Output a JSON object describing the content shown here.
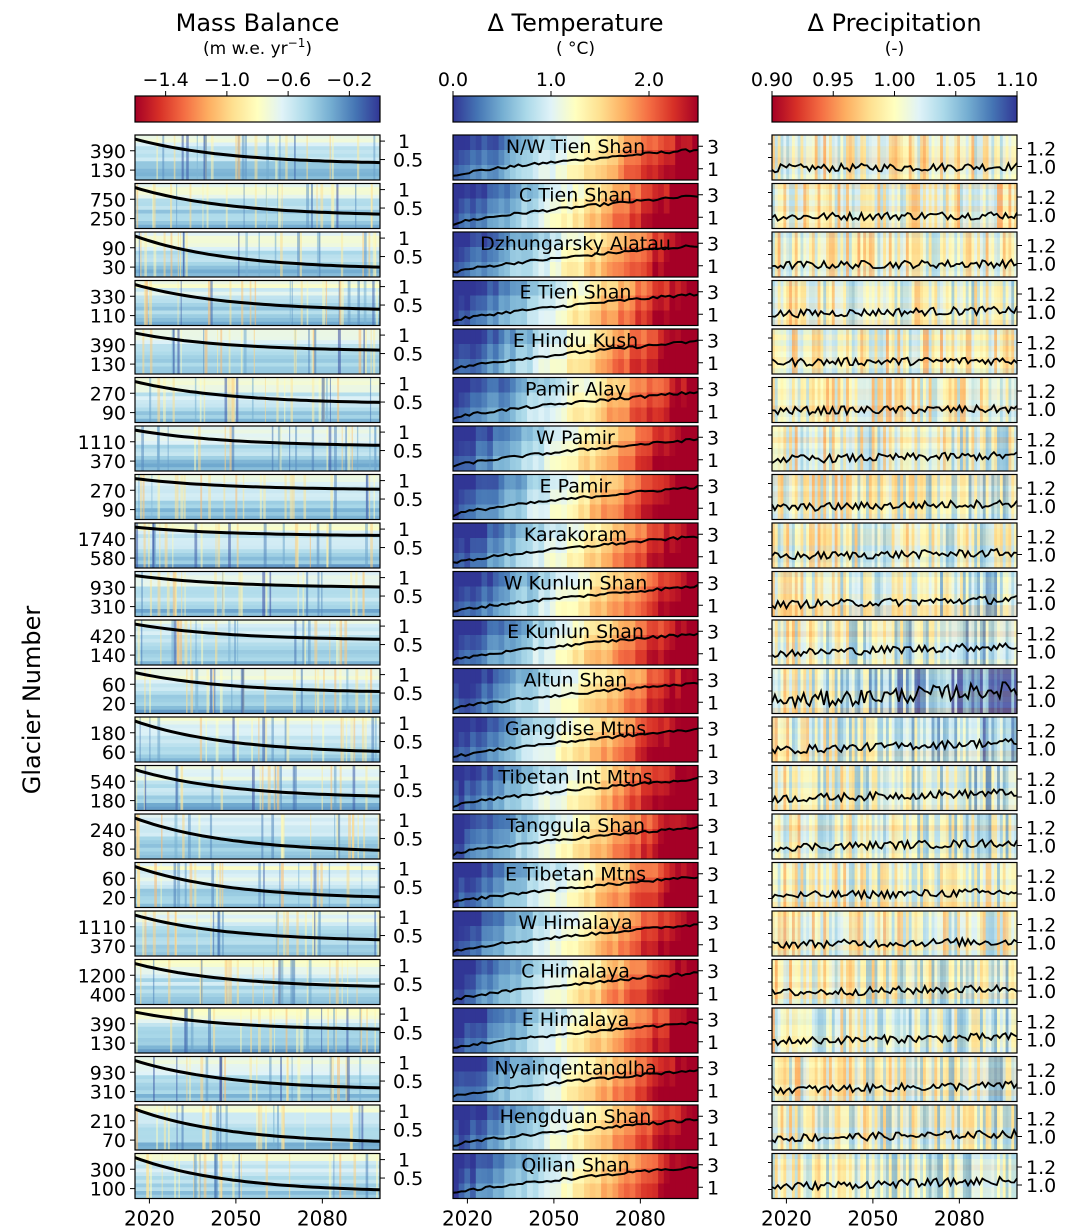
{
  "y_axis_label": "Glacier Number",
  "x_ticks": [
    "2020",
    "2050",
    "2080"
  ],
  "panels": [
    {
      "title": "Mass Balance",
      "units_prefix": "(m w.e. yr",
      "units_sup": "−1",
      "units_suffix": ")",
      "colorbar_ticks": [
        "−1.4",
        "−1.0",
        "−0.6",
        "−0.2"
      ],
      "colormap": "RdYlBu",
      "right_ticks": [
        "1",
        "0.5"
      ]
    },
    {
      "title": "Δ Temperature",
      "units": "( °C)",
      "colorbar_ticks": [
        "0.0",
        "1.0",
        "2.0"
      ],
      "colormap": "RdYlBu_r",
      "right_ticks": [
        "3",
        "1"
      ]
    },
    {
      "title": "Δ Precipitation",
      "units": "(-)",
      "colorbar_ticks": [
        "0.90",
        "0.95",
        "1.00",
        "1.05",
        "1.10"
      ],
      "colormap": "RdYlBu",
      "right_ticks": [
        "1.2",
        "1.0"
      ]
    }
  ],
  "regions": [
    {
      "name": "N/W Tien Shan",
      "glacier_ticks": [
        "390",
        "130"
      ]
    },
    {
      "name": "C Tien Shan",
      "glacier_ticks": [
        "750",
        "250"
      ]
    },
    {
      "name": "Dzhungarsky Alatau",
      "glacier_ticks": [
        "90",
        "30"
      ]
    },
    {
      "name": "E Tien Shan",
      "glacier_ticks": [
        "330",
        "110"
      ]
    },
    {
      "name": "E Hindu Kush",
      "glacier_ticks": [
        "390",
        "130"
      ]
    },
    {
      "name": "Pamir Alay",
      "glacier_ticks": [
        "270",
        "90"
      ]
    },
    {
      "name": "W Pamir",
      "glacier_ticks": [
        "1110",
        "370"
      ]
    },
    {
      "name": "E Pamir",
      "glacier_ticks": [
        "270",
        "90"
      ]
    },
    {
      "name": "Karakoram",
      "glacier_ticks": [
        "1740",
        "580"
      ]
    },
    {
      "name": "W Kunlun Shan",
      "glacier_ticks": [
        "930",
        "310"
      ]
    },
    {
      "name": "E Kunlun Shan",
      "glacier_ticks": [
        "420",
        "140"
      ]
    },
    {
      "name": "Altun Shan",
      "glacier_ticks": [
        "60",
        "20"
      ]
    },
    {
      "name": "Gangdise Mtns",
      "glacier_ticks": [
        "180",
        "60"
      ]
    },
    {
      "name": "Tibetan Int Mtns",
      "glacier_ticks": [
        "540",
        "180"
      ]
    },
    {
      "name": "Tanggula Shan",
      "glacier_ticks": [
        "240",
        "80"
      ]
    },
    {
      "name": "E Tibetan Mtns",
      "glacier_ticks": [
        "60",
        "20"
      ]
    },
    {
      "name": "W Himalaya",
      "glacier_ticks": [
        "1110",
        "370"
      ]
    },
    {
      "name": "C Himalaya",
      "glacier_ticks": [
        "1200",
        "400"
      ]
    },
    {
      "name": "E Himalaya",
      "glacier_ticks": [
        "390",
        "130"
      ]
    },
    {
      "name": "Nyainqentanglha",
      "glacier_ticks": [
        "930",
        "310"
      ]
    },
    {
      "name": "Hengduan Shan",
      "glacier_ticks": [
        "210",
        "70"
      ]
    },
    {
      "name": "Qilian Shan",
      "glacier_ticks": [
        "300",
        "100"
      ]
    }
  ],
  "chart_data": {
    "type": "heatmap",
    "x_range": [
      2015,
      2100
    ],
    "x_ticks": [
      2020,
      2050,
      2080
    ],
    "colorbars": {
      "mass_balance": {
        "range": [
          -1.6,
          0.0
        ],
        "ticks": [
          -1.4,
          -1.0,
          -0.6,
          -0.2
        ]
      },
      "temperature": {
        "range": [
          0.0,
          2.5
        ],
        "ticks": [
          0.0,
          1.0,
          2.0
        ]
      },
      "precipitation": {
        "range": [
          0.9,
          1.1
        ],
        "ticks": [
          0.9,
          0.95,
          1.0,
          1.05,
          1.1
        ]
      }
    },
    "right_axis_ranges": {
      "mass_balance_remaining_fraction": [
        0,
        1.1
      ],
      "temperature_line": [
        0,
        4
      ],
      "precipitation_line": [
        0.85,
        1.35
      ]
    },
    "series": [
      {
        "region": "N/W Tien Shan",
        "remaining_fraction": [
          1.0,
          0.38
        ],
        "temp_end": 2.7,
        "precip_mean": 1.0
      },
      {
        "region": "C Tien Shan",
        "remaining_fraction": [
          1.0,
          0.3
        ],
        "temp_end": 2.9,
        "precip_mean": 1.0
      },
      {
        "region": "Dzhungarsky Alatau",
        "remaining_fraction": [
          1.0,
          0.18
        ],
        "temp_end": 2.8,
        "precip_mean": 1.0
      },
      {
        "region": "E Tien Shan",
        "remaining_fraction": [
          1.0,
          0.35
        ],
        "temp_end": 2.8,
        "precip_mean": 1.02
      },
      {
        "region": "E Hindu Kush",
        "remaining_fraction": [
          1.0,
          0.55
        ],
        "temp_end": 2.9,
        "precip_mean": 1.0
      },
      {
        "region": "Pamir Alay",
        "remaining_fraction": [
          1.0,
          0.45
        ],
        "temp_end": 2.7,
        "precip_mean": 1.0
      },
      {
        "region": "W Pamir",
        "remaining_fraction": [
          1.0,
          0.6
        ],
        "temp_end": 2.8,
        "precip_mean": 1.02
      },
      {
        "region": "E Pamir",
        "remaining_fraction": [
          1.0,
          0.72
        ],
        "temp_end": 2.9,
        "precip_mean": 1.03
      },
      {
        "region": "Karakoram",
        "remaining_fraction": [
          1.0,
          0.78
        ],
        "temp_end": 2.8,
        "precip_mean": 1.02
      },
      {
        "region": "W Kunlun Shan",
        "remaining_fraction": [
          1.0,
          0.7
        ],
        "temp_end": 2.7,
        "precip_mean": 1.04
      },
      {
        "region": "E Kunlun Shan",
        "remaining_fraction": [
          1.0,
          0.6
        ],
        "temp_end": 2.8,
        "precip_mean": 1.06
      },
      {
        "region": "Altun Shan",
        "remaining_fraction": [
          1.0,
          0.5
        ],
        "temp_end": 2.7,
        "precip_mean": 1.12
      },
      {
        "region": "Gangdise Mtns",
        "remaining_fraction": [
          1.0,
          0.2
        ],
        "temp_end": 2.9,
        "precip_mean": 1.07
      },
      {
        "region": "Tibetan Int Mtns",
        "remaining_fraction": [
          1.0,
          0.3
        ],
        "temp_end": 2.8,
        "precip_mean": 1.05
      },
      {
        "region": "Tanggula Shan",
        "remaining_fraction": [
          1.0,
          0.15
        ],
        "temp_end": 2.8,
        "precip_mean": 1.03
      },
      {
        "region": "E Tibetan Mtns",
        "remaining_fraction": [
          1.0,
          0.2
        ],
        "temp_end": 2.7,
        "precip_mean": 1.02
      },
      {
        "region": "W Himalaya",
        "remaining_fraction": [
          1.0,
          0.35
        ],
        "temp_end": 2.8,
        "precip_mean": 1.01
      },
      {
        "region": "C Himalaya",
        "remaining_fraction": [
          1.0,
          0.4
        ],
        "temp_end": 2.8,
        "precip_mean": 1.03
      },
      {
        "region": "E Himalaya",
        "remaining_fraction": [
          1.0,
          0.55
        ],
        "temp_end": 2.7,
        "precip_mean": 1.03
      },
      {
        "region": "Nyainqentanglha",
        "remaining_fraction": [
          1.0,
          0.28
        ],
        "temp_end": 2.8,
        "precip_mean": 1.03
      },
      {
        "region": "Hengduan Shan",
        "remaining_fraction": [
          1.0,
          0.15
        ],
        "temp_end": 2.7,
        "precip_mean": 1.03
      },
      {
        "region": "Qilian Shan",
        "remaining_fraction": [
          1.0,
          0.15
        ],
        "temp_end": 2.8,
        "precip_mean": 1.05
      }
    ]
  }
}
